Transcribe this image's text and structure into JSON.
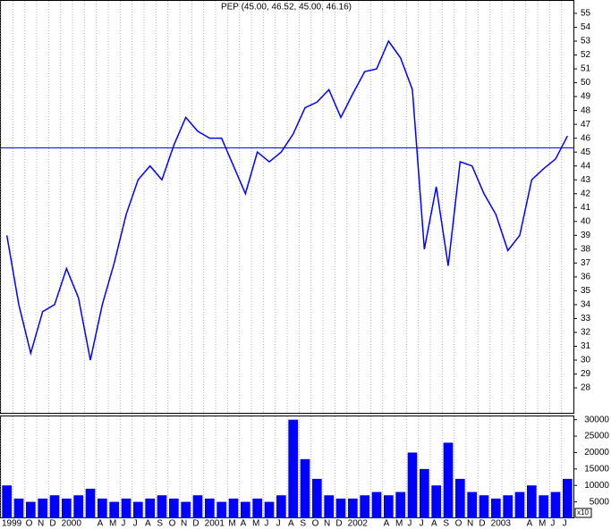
{
  "chart_data": {
    "type": "line",
    "title": "PEP (45.00, 46.52, 45.00, 46.16)",
    "categories": [
      "1999",
      null,
      "O",
      "N",
      "D",
      "2000",
      null,
      null,
      "A",
      "M",
      "J",
      "J",
      "A",
      "S",
      "O",
      "N",
      "D",
      "2001",
      null,
      "M",
      "A",
      "M",
      "J",
      "J",
      "A",
      "S",
      "O",
      "N",
      "D",
      "2002",
      null,
      null,
      "A",
      "M",
      "J",
      "J",
      "A",
      "S",
      "O",
      "N",
      "D",
      "2003",
      null,
      null,
      "A",
      "M",
      "J",
      "J"
    ],
    "series": [
      {
        "name": "PEP",
        "color": "#0000ff",
        "values": [
          39,
          34,
          30.5,
          33.5,
          34,
          36.6,
          34.5,
          30,
          34,
          37,
          40.5,
          43,
          44,
          43,
          45.5,
          47.5,
          46.5,
          46,
          46,
          44,
          42,
          45,
          44.3,
          45,
          46.3,
          48.2,
          48.6,
          49.5,
          47.5,
          49.2,
          50.8,
          51,
          53,
          51.8,
          49.5,
          38,
          42.5,
          36.8,
          44.3,
          44,
          42,
          40.5,
          37.9,
          39,
          43,
          43.8,
          44.5,
          46.16
        ]
      }
    ],
    "hline": 45.3,
    "ylim": [
      26.2,
      55.9
    ],
    "yticks": [
      28,
      29,
      30,
      31,
      32,
      33,
      34,
      35,
      36,
      37,
      38,
      39,
      40,
      41,
      42,
      43,
      44,
      45,
      46,
      47,
      48,
      49,
      50,
      51,
      52,
      53,
      54,
      55
    ],
    "volume": {
      "color": "#0000ff",
      "values": [
        10000,
        6000,
        5000,
        6000,
        7000,
        6000,
        7000,
        9000,
        6000,
        5000,
        6000,
        5000,
        6000,
        7000,
        6000,
        5000,
        7000,
        6000,
        5000,
        6000,
        5000,
        6000,
        5000,
        7000,
        30000,
        18000,
        12000,
        7000,
        6000,
        6000,
        7000,
        8000,
        7000,
        8000,
        20000,
        15000,
        10000,
        23000,
        12000,
        8000,
        7000,
        6000,
        7000,
        8000,
        10000,
        7000,
        8000,
        12000
      ],
      "ylim": [
        0,
        31000
      ],
      "yticks": [
        5000,
        10000,
        15000,
        20000,
        25000,
        30000
      ],
      "unit": "x10"
    }
  }
}
